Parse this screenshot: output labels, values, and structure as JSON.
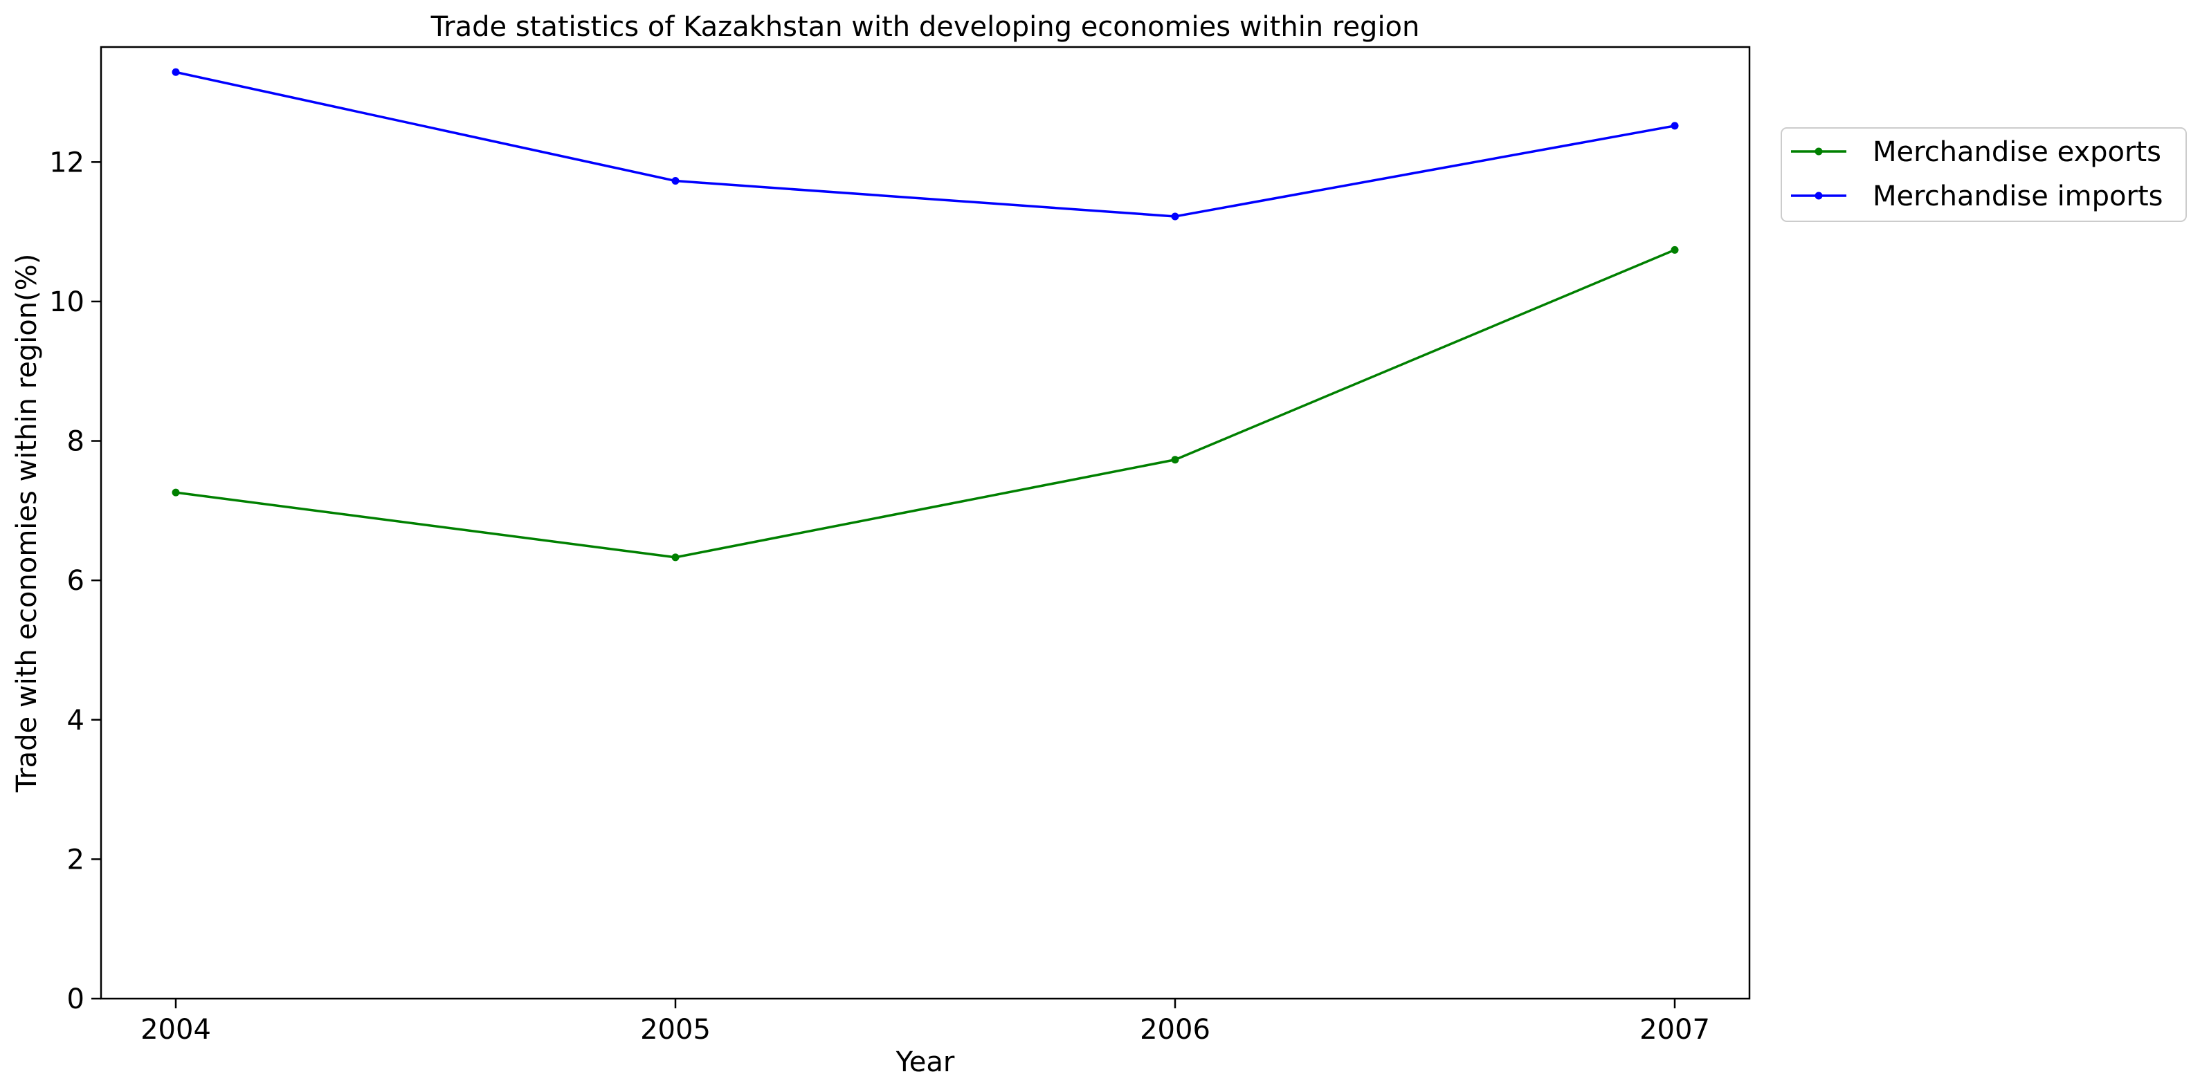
{
  "chart_data": {
    "type": "line",
    "title": "Trade statistics of Kazakhstan with developing economies within region",
    "xlabel": "Year",
    "ylabel": "Trade with economies within region(%)",
    "x": [
      2004,
      2005,
      2006,
      2007
    ],
    "x_tick_labels": [
      "2004",
      "2005",
      "2006",
      "2007"
    ],
    "ylim": [
      0,
      13.65
    ],
    "y_ticks": [
      0,
      2,
      4,
      6,
      8,
      10,
      12
    ],
    "y_tick_labels": [
      "0",
      "2",
      "4",
      "6",
      "8",
      "10",
      "12"
    ],
    "grid": false,
    "legend_position": "outside-top-right",
    "series": [
      {
        "name": "Merchandise exports",
        "color": "#008000",
        "values": [
          7.26,
          6.33,
          7.73,
          10.74
        ]
      },
      {
        "name": "Merchandise imports",
        "color": "#0000ff",
        "values": [
          13.29,
          11.73,
          11.22,
          12.52
        ]
      }
    ]
  }
}
